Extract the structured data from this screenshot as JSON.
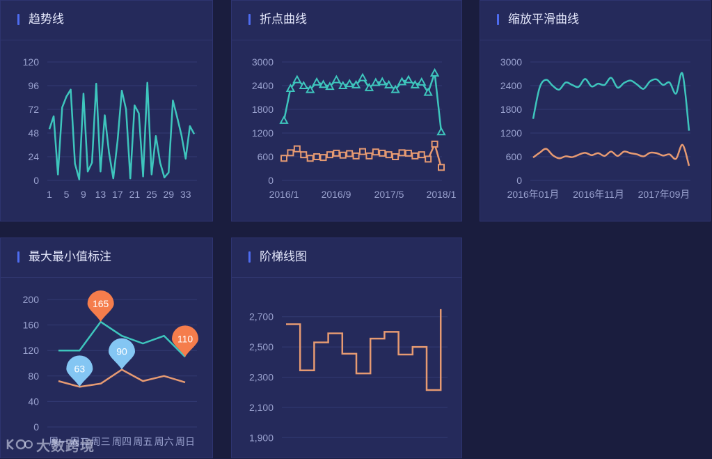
{
  "colors": {
    "teal": "#3ec5bd",
    "orange": "#e69a72",
    "grid": "#333a73",
    "tick": "#9aa2cf",
    "pin_orange": "#f57d4c",
    "pin_blue": "#84c6f3"
  },
  "panels": [
    {
      "title": "趋势线"
    },
    {
      "title": "折点曲线"
    },
    {
      "title": "缩放平滑曲线"
    },
    {
      "title": "最大最小值标注"
    },
    {
      "title": "阶梯线图"
    }
  ],
  "watermark": "大数跨境",
  "chart_data": [
    {
      "type": "line",
      "title": "趋势线",
      "x": [
        1,
        2,
        3,
        4,
        5,
        6,
        7,
        8,
        9,
        10,
        11,
        12,
        13,
        14,
        15,
        16,
        17,
        18,
        19,
        20,
        21,
        22,
        23,
        24,
        25,
        26,
        27,
        28,
        29,
        30,
        31,
        32,
        33,
        34,
        35
      ],
      "x_tick_labels": [
        "1",
        "5",
        "9",
        "13",
        "17",
        "21",
        "25",
        "29",
        "33"
      ],
      "ylim": [
        0,
        120
      ],
      "y_ticks": [
        0,
        24,
        48,
        72,
        96,
        120
      ],
      "series": [
        {
          "name": "trend",
          "color": "teal",
          "values": [
            52,
            65,
            6,
            74,
            85,
            92,
            17,
            1,
            88,
            9,
            18,
            98,
            9,
            66,
            28,
            2,
            40,
            91,
            72,
            2,
            76,
            68,
            4,
            99,
            6,
            45,
            18,
            3,
            8,
            81,
            64,
            46,
            22,
            55,
            47
          ]
        }
      ]
    },
    {
      "type": "line",
      "title": "折点曲线",
      "x_tick_labels": [
        "2016/1",
        "2016/9",
        "2017/5",
        "2018/1"
      ],
      "ylim": [
        0,
        3000
      ],
      "y_ticks": [
        0,
        600,
        1200,
        1800,
        2400,
        3000
      ],
      "markers": true,
      "series": [
        {
          "name": "upper",
          "color": "teal",
          "marker": "triangle",
          "values": [
            1520,
            2330,
            2550,
            2400,
            2300,
            2490,
            2430,
            2380,
            2550,
            2400,
            2450,
            2420,
            2600,
            2350,
            2480,
            2500,
            2420,
            2300,
            2500,
            2550,
            2420,
            2490,
            2230,
            2720,
            1230
          ]
        },
        {
          "name": "lower",
          "color": "orange",
          "marker": "square",
          "values": [
            560,
            700,
            800,
            650,
            560,
            600,
            580,
            650,
            690,
            640,
            680,
            620,
            730,
            620,
            720,
            690,
            650,
            600,
            700,
            690,
            620,
            650,
            540,
            920,
            330
          ]
        }
      ]
    },
    {
      "type": "line",
      "title": "缩放平滑曲线",
      "smooth": true,
      "x_tick_labels": [
        "2016年01月",
        "2016年11月",
        "2017年09月"
      ],
      "ylim": [
        0,
        3000
      ],
      "y_ticks": [
        0,
        600,
        1200,
        1800,
        2400,
        3000
      ],
      "series": [
        {
          "name": "upper",
          "color": "teal",
          "values": [
            1560,
            2350,
            2550,
            2400,
            2300,
            2480,
            2420,
            2370,
            2570,
            2380,
            2450,
            2420,
            2600,
            2350,
            2470,
            2530,
            2430,
            2320,
            2510,
            2560,
            2420,
            2480,
            2200,
            2700,
            1260
          ]
        },
        {
          "name": "lower",
          "color": "orange",
          "values": [
            580,
            700,
            800,
            640,
            560,
            610,
            590,
            650,
            700,
            640,
            690,
            620,
            730,
            620,
            730,
            690,
            660,
            610,
            700,
            690,
            630,
            660,
            550,
            900,
            370
          ]
        }
      ]
    },
    {
      "type": "line",
      "title": "最大最小值标注",
      "categories": [
        "周一",
        "周二",
        "周三",
        "周四",
        "周五",
        "周六",
        "周日"
      ],
      "ylim": [
        0,
        200
      ],
      "y_ticks": [
        0,
        40,
        80,
        120,
        160,
        200
      ],
      "series": [
        {
          "name": "high",
          "color": "teal",
          "values": [
            120,
            120,
            165,
            143,
            131,
            143,
            110
          ],
          "annotations": [
            {
              "kind": "max",
              "index": 2,
              "label": "165",
              "color": "pin_orange"
            },
            {
              "kind": "min",
              "index": 6,
              "label": "110",
              "color": "pin_orange"
            }
          ]
        },
        {
          "name": "low",
          "color": "orange",
          "values": [
            72,
            63,
            68,
            90,
            72,
            80,
            70
          ],
          "annotations": [
            {
              "kind": "min",
              "index": 1,
              "label": "63",
              "color": "pin_blue"
            },
            {
              "kind": "max",
              "index": 3,
              "label": "90",
              "color": "pin_blue"
            }
          ]
        }
      ]
    },
    {
      "type": "line",
      "title": "阶梯线图",
      "step": true,
      "ylim": [
        1800,
        2800
      ],
      "y_ticks": [
        1900,
        2100,
        2300,
        2500,
        2700
      ],
      "y_tick_labels": [
        "1,900",
        "2,100",
        "2,300",
        "2,500",
        "2,700"
      ],
      "series": [
        {
          "name": "step",
          "color": "orange",
          "values": [
            2650,
            2345,
            2530,
            2590,
            2455,
            2325,
            2555,
            2600,
            2450,
            2500,
            2215,
            2750
          ]
        }
      ]
    }
  ]
}
